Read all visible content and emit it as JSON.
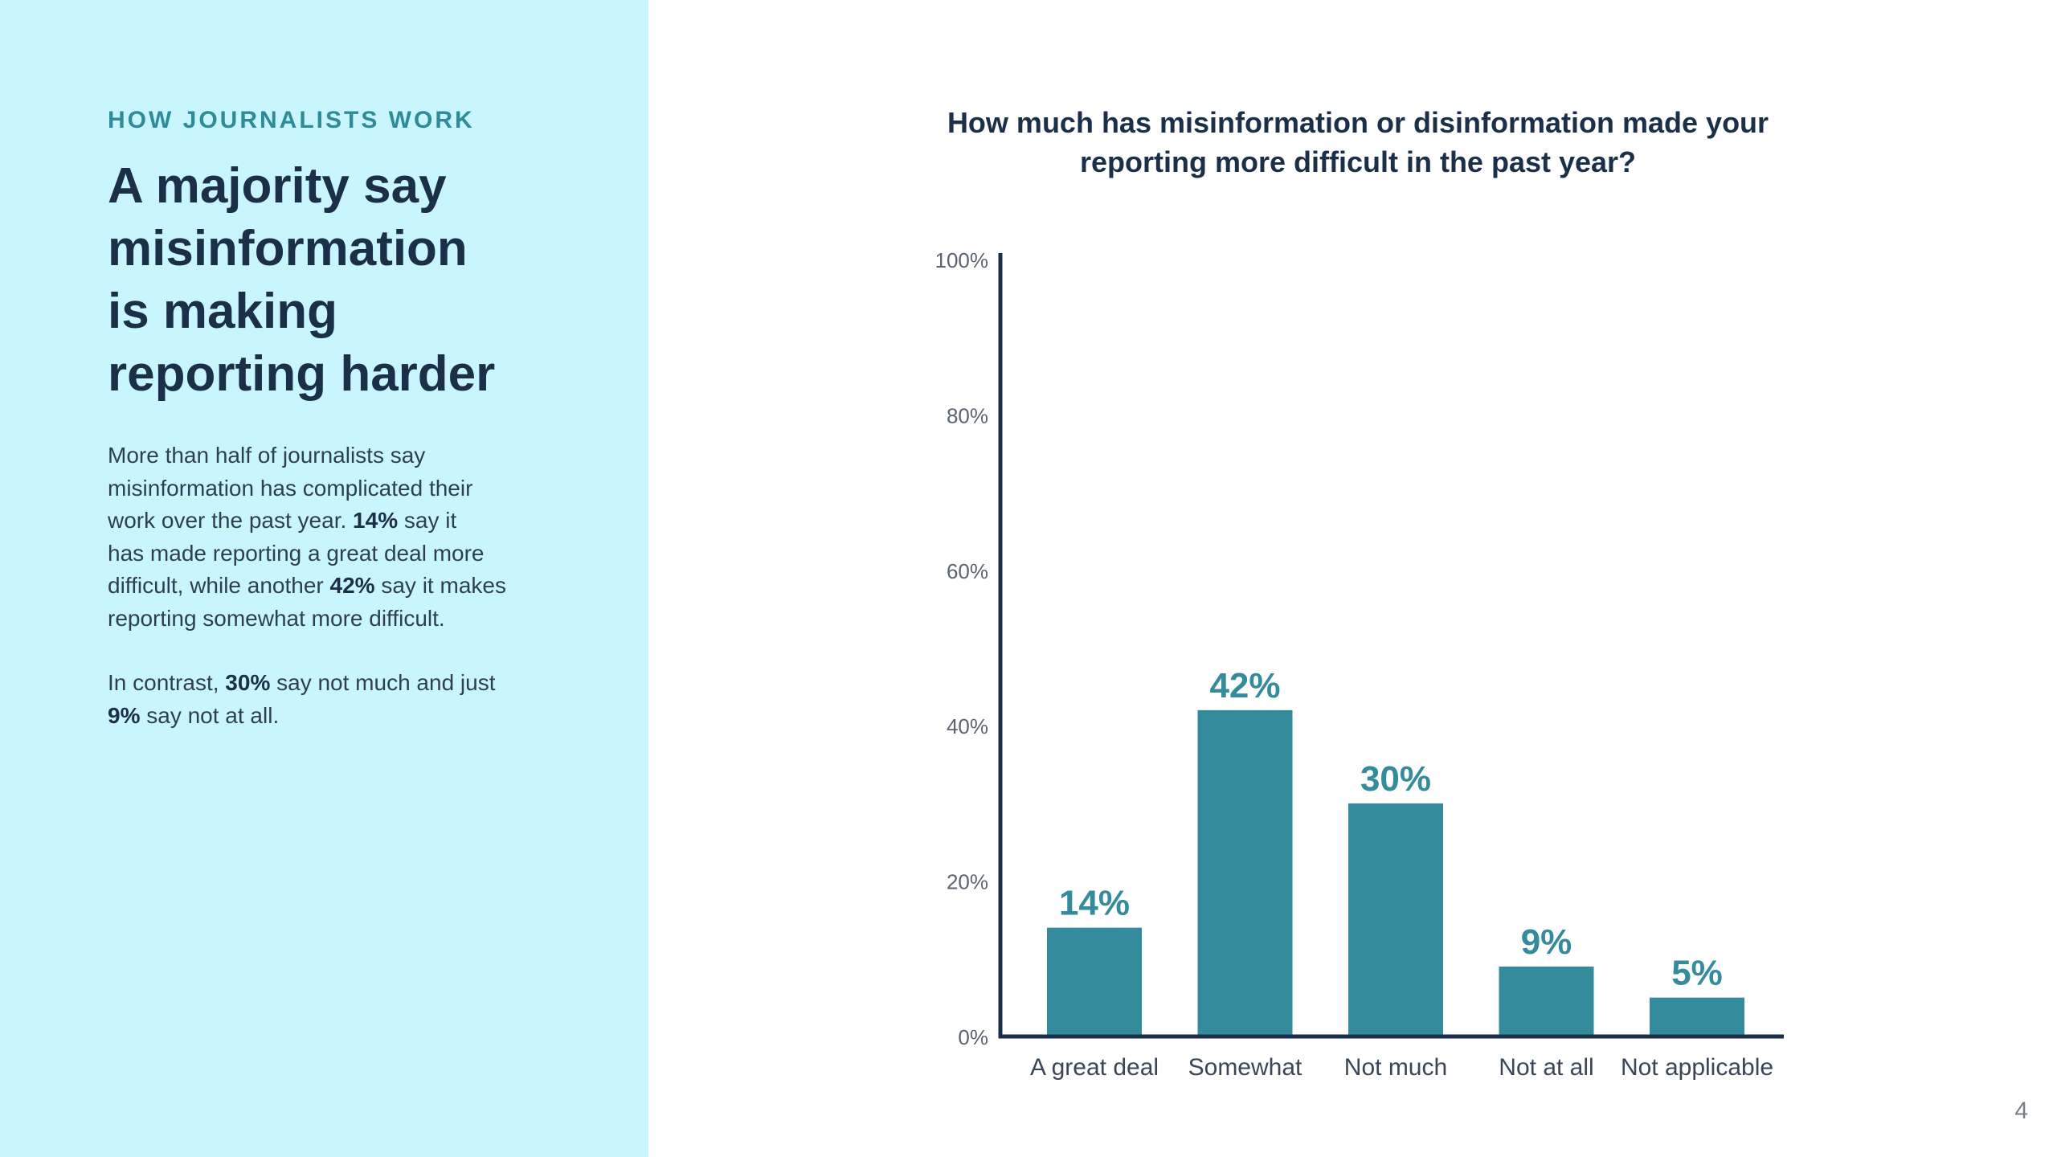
{
  "left_panel": {
    "eyebrow": "HOW JOURNALISTS WORK",
    "headline_lines": [
      "A majority say",
      "misinformation",
      "is making",
      "reporting harder"
    ],
    "paragraph1": {
      "lines": [
        [
          {
            "t": "More than half of journalists say"
          }
        ],
        [
          {
            "t": "misinformation has complicated their"
          }
        ],
        [
          {
            "t": "work over the past year. "
          },
          {
            "t": "14%",
            "b": true
          },
          {
            "t": " say it"
          }
        ],
        [
          {
            "t": "has made reporting a great deal more"
          }
        ],
        [
          {
            "t": "difficult, while another "
          },
          {
            "t": "42%",
            "b": true
          },
          {
            "t": " say it makes"
          }
        ],
        [
          {
            "t": "reporting somewhat more difficult."
          }
        ]
      ]
    },
    "paragraph2": {
      "lines": [
        [
          {
            "t": "In contrast, "
          },
          {
            "t": "30%",
            "b": true
          },
          {
            "t": " say not much and just"
          }
        ],
        [
          {
            "t": "9%",
            "b": true
          },
          {
            "t": " say not at all."
          }
        ]
      ]
    }
  },
  "page_number": "4",
  "colors": {
    "panel_bg": "#c9f6fe",
    "accent": "#348b9b",
    "heading": "#1b2f48",
    "axis": "#1b2f48",
    "tick_text": "#5a6470"
  },
  "chart_data": {
    "type": "bar",
    "title": "How much has misinformation or disinformation made your reporting more difficult in the past year?",
    "title_lines": [
      "How much has misinformation or disinformation made your",
      "reporting more difficult in the past year?"
    ],
    "categories": [
      "A great deal",
      "Somewhat",
      "Not much",
      "Not at all",
      "Not applicable"
    ],
    "values": [
      14,
      42,
      30,
      9,
      5
    ],
    "data_labels": [
      "14%",
      "42%",
      "30%",
      "9%",
      "5%"
    ],
    "ylim": [
      0,
      100
    ],
    "yticks": [
      0,
      20,
      40,
      60,
      80,
      100
    ],
    "ytick_labels": [
      "0%",
      "20%",
      "40%",
      "60%",
      "80%",
      "100%"
    ],
    "xlabel": "",
    "ylabel": "",
    "grid": false,
    "bar_color": "#348b9b"
  }
}
